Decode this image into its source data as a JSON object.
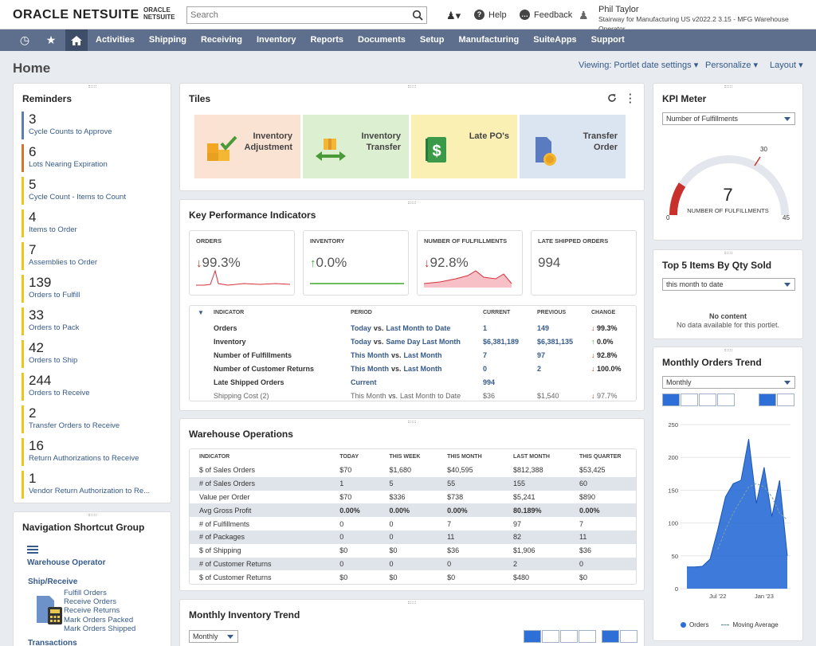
{
  "header": {
    "logo_main": "ORACLE",
    "logo_second": "NETSUITE",
    "sublogo_top": "ORACLE",
    "sublogo_bottom": "NETSUITE",
    "search_placeholder": "Search",
    "help": "Help",
    "feedback": "Feedback",
    "user_name": "Phil Taylor",
    "user_role": "Stairway for Manufacturing US v2022.2 3.15 - MFG Warehouse Operator"
  },
  "nav": {
    "items": [
      "Activities",
      "Shipping",
      "Receiving",
      "Inventory",
      "Reports",
      "Documents",
      "Setup",
      "Manufacturing",
      "SuiteApps",
      "Support"
    ]
  },
  "page": {
    "title": "Home",
    "viewing": "Viewing: Portlet date settings",
    "personalize": "Personalize",
    "layout": "Layout"
  },
  "reminders": {
    "title": "Reminders",
    "items": [
      {
        "count": "3",
        "label": "Cycle Counts to Approve",
        "color": "#5a7db5"
      },
      {
        "count": "6",
        "label": "Lots Nearing Expiration",
        "color": "#e0702a"
      },
      {
        "count": "5",
        "label": "Cycle Count - Items to Count",
        "color": "#f0c419"
      },
      {
        "count": "4",
        "label": "Items to Order",
        "color": "#f0c419"
      },
      {
        "count": "7",
        "label": "Assemblies to Order",
        "color": "#f0c419"
      },
      {
        "count": "139",
        "label": "Orders to Fulfill",
        "color": "#f0c419"
      },
      {
        "count": "33",
        "label": "Orders to Pack",
        "color": "#f0c419"
      },
      {
        "count": "42",
        "label": "Orders to Ship",
        "color": "#f0c419"
      },
      {
        "count": "244",
        "label": "Orders to Receive",
        "color": "#f0c419"
      },
      {
        "count": "2",
        "label": "Transfer Orders to Receive",
        "color": "#f0c419"
      },
      {
        "count": "16",
        "label": "Return Authorizations to Receive",
        "color": "#f0c419"
      },
      {
        "count": "1",
        "label": "Vendor Return Authorization to Re...",
        "color": "#f0c419"
      }
    ]
  },
  "nav_shortcut": {
    "title": "Navigation Shortcut Group",
    "group": "Warehouse Operator",
    "section": "Ship/Receive",
    "links": [
      "Fulfill Orders",
      "Receive Orders",
      "Receive Returns",
      "Mark Orders Packed",
      "Mark Orders Shipped"
    ],
    "section2": "Transactions"
  },
  "tiles": {
    "title": "Tiles",
    "items": [
      {
        "line1": "Inventory",
        "line2": "Adjustment",
        "bg": "#fbe3d3"
      },
      {
        "line1": "Inventory",
        "line2": "Transfer",
        "bg": "#dcefd0"
      },
      {
        "line1": "Late PO's",
        "line2": "",
        "bg": "#fbf0b4"
      },
      {
        "line1": "Transfer",
        "line2": "Order",
        "bg": "#dbe5f1"
      }
    ]
  },
  "kpi": {
    "title": "Key Performance Indicators",
    "boxes": [
      {
        "label": "ORDERS",
        "value": "99.3%",
        "dir": "down"
      },
      {
        "label": "INVENTORY",
        "value": "0.0%",
        "dir": "up"
      },
      {
        "label": "NUMBER OF FULFILLMENTS",
        "value": "92.8%",
        "dir": "down"
      },
      {
        "label": "LATE SHIPPED ORDERS",
        "value": "994",
        "dir": ""
      }
    ],
    "headers": [
      "INDICATOR",
      "PERIOD",
      "CURRENT",
      "PREVIOUS",
      "CHANGE"
    ],
    "rows": [
      {
        "ind": "Orders",
        "p1": "Today",
        "p2": "Last Month to Date",
        "cur": "1",
        "prev": "149",
        "chg": "99.3%",
        "dir": "down"
      },
      {
        "ind": "Inventory",
        "p1": "Today",
        "p2": "Same Day Last Month",
        "cur": "$6,381,189",
        "prev": "$6,381,135",
        "chg": "0.0%",
        "dir": "up"
      },
      {
        "ind": "Number of Fulfillments",
        "p1": "This Month",
        "p2": "Last Month",
        "cur": "7",
        "prev": "97",
        "chg": "92.8%",
        "dir": "down"
      },
      {
        "ind": "Number of Customer Returns",
        "p1": "This Month",
        "p2": "Last Month",
        "cur": "0",
        "prev": "2",
        "chg": "100.0%",
        "dir": "down"
      },
      {
        "ind": "Late Shipped Orders",
        "p1": "Current",
        "p2": "",
        "cur": "994",
        "prev": "",
        "chg": "",
        "dir": ""
      },
      {
        "ind": "Shipping Cost (2)",
        "p1": "This Month",
        "p2": "Last Month to Date",
        "cur": "$36",
        "prev": "$1,540",
        "chg": "97.7%",
        "dir": "down"
      }
    ],
    "vs": "vs."
  },
  "warehouse": {
    "title": "Warehouse Operations",
    "headers": [
      "INDICATOR",
      "TODAY",
      "THIS WEEK",
      "THIS MONTH",
      "LAST MONTH",
      "THIS QUARTER"
    ],
    "rows": [
      [
        "$ of Sales Orders",
        "$70",
        "$1,680",
        "$40,595",
        "$812,388",
        "$53,425"
      ],
      [
        "# of Sales Orders",
        "1",
        "5",
        "55",
        "155",
        "60"
      ],
      [
        "Value per Order",
        "$70",
        "$336",
        "$738",
        "$5,241",
        "$890"
      ],
      [
        "Avg Gross Profit",
        "0.00%",
        "0.00%",
        "0.00%",
        "80.189%",
        "0.00%"
      ],
      [
        "# of Fulfillments",
        "0",
        "0",
        "7",
        "97",
        "7"
      ],
      [
        "# of Packages",
        "0",
        "0",
        "11",
        "82",
        "11"
      ],
      [
        "$ of Shipping",
        "$0",
        "$0",
        "$36",
        "$1,906",
        "$36"
      ],
      [
        "# of Customer Returns",
        "0",
        "0",
        "0",
        "2",
        "0"
      ],
      [
        "$ of Customer Returns",
        "$0",
        "$0",
        "$0",
        "$480",
        "$0"
      ]
    ]
  },
  "inv_trend": {
    "title": "Monthly Inventory Trend",
    "period": "Monthly"
  },
  "kpi_meter": {
    "title": "KPI Meter",
    "select": "Number of Fulfillments",
    "value": "7",
    "label": "NUMBER OF FULFILLMENTS",
    "min": "0",
    "target": "30",
    "max": "45"
  },
  "top5": {
    "title": "Top 5 Items By Qty Sold",
    "select": "this month to date",
    "empty1": "No content",
    "empty2": "No data available for this portlet."
  },
  "orders_trend": {
    "title": "Monthly Orders Trend",
    "period": "Monthly",
    "legend_orders": "Orders",
    "legend_ma": "Moving Average"
  },
  "chart_data": {
    "type": "area",
    "y_ticks": [
      "0",
      "50",
      "100",
      "150",
      "200",
      "250"
    ],
    "ylim": [
      0,
      250
    ],
    "x_ticks": [
      "Jul '22",
      "Jan '23"
    ],
    "series": [
      {
        "name": "Orders",
        "values": [
          33,
          33,
          34,
          45,
          90,
          140,
          160,
          165,
          228,
          130,
          185,
          110,
          165,
          50
        ]
      },
      {
        "name": "Moving Average",
        "values": [
          null,
          null,
          null,
          null,
          60,
          90,
          115,
          135,
          155,
          160,
          155,
          140,
          115,
          105
        ]
      }
    ]
  }
}
